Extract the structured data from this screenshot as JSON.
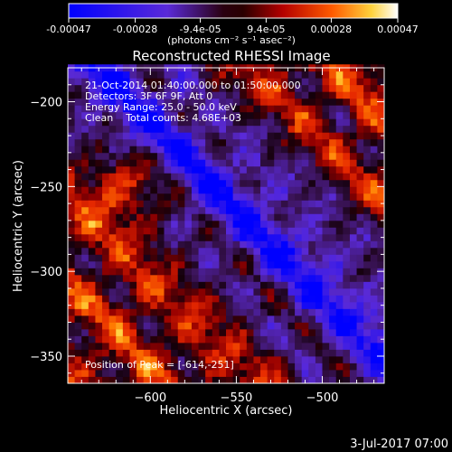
{
  "colorbar": {
    "tick_labels": [
      "-0.00047",
      "-0.00028",
      "-9.4e-05",
      "9.4e-05",
      "0.00028",
      "0.00047"
    ],
    "range": [
      -0.00047,
      0.00047
    ],
    "unit_label": "(photons cm⁻² s⁻¹ asec⁻²)",
    "colormap": "hot-with-negative-blue"
  },
  "chart_data": {
    "type": "heatmap",
    "title": "Reconstructed RHESSI Image",
    "xlabel": "Heliocentric X (arcsec)",
    "ylabel": "Heliocentric Y (arcsec)",
    "xlim": [
      -648,
      -464
    ],
    "ylim": [
      -366,
      -180
    ],
    "x_ticks": [
      -600,
      -550,
      -500
    ],
    "y_ticks": [
      -200,
      -250,
      -300,
      -350
    ],
    "x_tick_labels": [
      "−600",
      "−550",
      "−500"
    ],
    "y_tick_labels": [
      "−200",
      "−250",
      "−300",
      "−350"
    ],
    "grid": false,
    "pixel_size_arcsec": 4,
    "peak": [
      -614,
      -251
    ],
    "colors": {
      "text": "#ffffff",
      "background": "#000000"
    }
  },
  "annotations": {
    "time_range": "21-Oct-2014 01:40:00.000 to 01:50:00.000",
    "detectors": "Detectors: 3F 6F 9F, Att 0",
    "energy": "Energy Range: 25.0 - 50.0 keV",
    "clean": "Clean    Total counts: 4.68E+03",
    "peak_text": "Position of Peak = [-614,-251]"
  },
  "footer": {
    "date": "3-Jul-2017 07:00"
  }
}
